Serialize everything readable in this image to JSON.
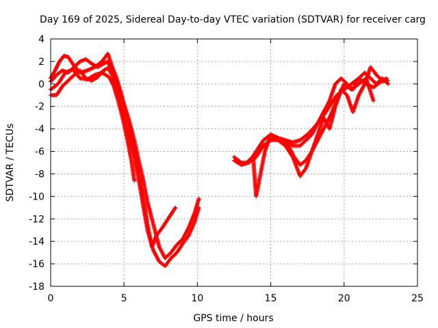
{
  "chart_data": {
    "type": "scatter",
    "title": "Day 169 of 2025, Sidereal Day-to-day VTEC variation (SDTVAR) for receiver carg",
    "xlabel": "GPS time / hours",
    "ylabel": "SDTVAR / TECUs",
    "xlim": [
      0,
      25
    ],
    "ylim": [
      -18,
      4
    ],
    "xticks": [
      0,
      5,
      10,
      15,
      20,
      25
    ],
    "yticks": [
      -18,
      -16,
      -14,
      -12,
      -10,
      -8,
      -6,
      -4,
      -2,
      0,
      2,
      4
    ],
    "grid": true,
    "legend": "none",
    "marker": "plus",
    "color": "#ff0000",
    "series": [
      {
        "x": [
          0.0,
          0.3,
          0.6,
          0.9,
          1.2,
          1.6,
          2.0,
          2.5,
          3.0,
          3.5,
          3.9,
          4.2,
          4.5,
          4.8,
          5.1,
          5.5,
          5.9,
          6.3,
          6.6,
          6.9,
          7.2,
          7.6,
          8.0,
          8.5
        ],
        "y": [
          0.5,
          1.2,
          2.0,
          2.5,
          2.4,
          1.6,
          1.0,
          1.2,
          1.5,
          2.0,
          2.7,
          1.5,
          0.5,
          -0.8,
          -2.5,
          -4.5,
          -7.0,
          -10.0,
          -12.5,
          -14.5,
          -13.5,
          -12.8,
          -12.0,
          -11.0
        ]
      },
      {
        "x": [
          0.0,
          0.4,
          0.8,
          1.2,
          1.6,
          2.0,
          2.4,
          2.8,
          3.2,
          3.6,
          3.9,
          4.2,
          4.5,
          4.8,
          5.1,
          5.4,
          5.7,
          6.0,
          6.3,
          6.6,
          7.0,
          7.4,
          7.8,
          8.2,
          8.6,
          9.0,
          9.4,
          9.8,
          10.1
        ],
        "y": [
          0.2,
          0.8,
          1.2,
          1.0,
          1.5,
          2.0,
          2.2,
          1.8,
          1.5,
          1.8,
          2.0,
          1.0,
          0.0,
          -1.0,
          -2.2,
          -3.5,
          -5.0,
          -6.8,
          -8.5,
          -10.5,
          -12.5,
          -14.5,
          -15.5,
          -15.0,
          -14.3,
          -13.8,
          -12.8,
          -11.5,
          -10.2
        ]
      },
      {
        "x": [
          0.0,
          0.5,
          1.0,
          1.5,
          2.0,
          2.5,
          3.0,
          3.5,
          4.0,
          4.3,
          4.6,
          4.9,
          5.2,
          5.5,
          5.7
        ],
        "y": [
          -0.5,
          0.0,
          1.0,
          1.3,
          0.5,
          0.4,
          0.8,
          1.0,
          0.6,
          -0.2,
          -1.5,
          -3.0,
          -4.8,
          -6.8,
          -8.6
        ]
      },
      {
        "x": [
          0.0,
          0.4,
          0.8,
          1.2,
          1.6,
          2.0,
          2.4,
          2.8,
          3.2,
          3.6,
          3.9,
          4.2,
          4.5,
          4.8,
          5.1,
          5.4,
          5.7,
          6.0,
          6.3,
          6.6,
          7.0,
          7.4,
          7.8,
          8.2,
          8.6,
          9.0,
          9.4,
          9.8,
          10.1
        ],
        "y": [
          -1.0,
          -1.0,
          -0.2,
          0.3,
          0.8,
          1.2,
          0.5,
          0.3,
          0.6,
          1.2,
          1.4,
          0.8,
          -0.6,
          -2.0,
          -3.5,
          -5.0,
          -6.5,
          -8.5,
          -10.8,
          -13.0,
          -14.8,
          -15.8,
          -16.2,
          -15.5,
          -15.0,
          -14.2,
          -13.5,
          -12.3,
          -11.0
        ]
      },
      {
        "x": [
          12.5,
          13.0,
          13.5,
          14.0,
          14.5,
          15.0,
          15.3,
          15.6,
          16.0,
          16.5,
          17.0,
          17.4,
          17.8,
          18.2,
          18.6,
          19.0,
          19.4,
          19.8,
          20.2,
          20.6,
          21.0,
          21.4,
          21.8,
          22.2,
          22.6,
          23.0
        ],
        "y": [
          -6.5,
          -7.0,
          -7.0,
          -6.5,
          -5.5,
          -5.0,
          -4.8,
          -5.0,
          -5.2,
          -5.5,
          -5.5,
          -5.0,
          -4.5,
          -3.5,
          -2.5,
          -1.5,
          0.0,
          0.5,
          0.0,
          -0.5,
          0.5,
          1.0,
          0.5,
          0.0,
          0.5,
          0.0
        ]
      },
      {
        "x": [
          12.5,
          13.0,
          13.5,
          14.0,
          14.5,
          15.0,
          15.5,
          16.0,
          16.5,
          17.0,
          17.5,
          18.0,
          18.5,
          19.0,
          19.5,
          20.0,
          20.5,
          21.0,
          21.5,
          22.0,
          22.5,
          23.0
        ],
        "y": [
          -6.8,
          -7.2,
          -7.0,
          -6.0,
          -5.0,
          -4.5,
          -4.8,
          -5.0,
          -5.2,
          -5.0,
          -4.5,
          -3.8,
          -3.0,
          -2.0,
          -1.0,
          -0.5,
          0.0,
          0.5,
          0.0,
          -0.3,
          0.2,
          0.3
        ]
      },
      {
        "x": [
          13.5,
          13.8,
          14.0,
          14.3,
          14.6,
          15.0,
          15.4,
          15.8,
          16.2,
          16.6,
          17.0,
          17.4,
          17.8,
          18.2,
          18.6,
          19.0,
          19.5,
          20.0,
          20.5,
          21.0,
          21.5,
          22.0
        ],
        "y": [
          -6.8,
          -6.5,
          -10.0,
          -8.0,
          -6.0,
          -4.5,
          -4.8,
          -5.0,
          -5.5,
          -6.5,
          -7.2,
          -6.8,
          -6.0,
          -5.0,
          -4.0,
          -3.0,
          -1.5,
          0.0,
          -0.5,
          0.0,
          0.5,
          -1.5
        ]
      },
      {
        "x": [
          14.5,
          15.0,
          15.5,
          16.0,
          16.5,
          17.0,
          17.4,
          17.8,
          18.2,
          18.6,
          19.0,
          19.4,
          19.8,
          20.2,
          20.6,
          21.0,
          21.4,
          21.8,
          22.2,
          22.6,
          22.9
        ],
        "y": [
          -5.5,
          -5.0,
          -5.0,
          -5.5,
          -6.5,
          -8.2,
          -7.5,
          -6.0,
          -4.5,
          -3.0,
          -4.0,
          -2.0,
          -0.5,
          -1.0,
          -2.5,
          -1.0,
          0.0,
          1.5,
          0.8,
          0.3,
          0.5
        ]
      }
    ]
  }
}
